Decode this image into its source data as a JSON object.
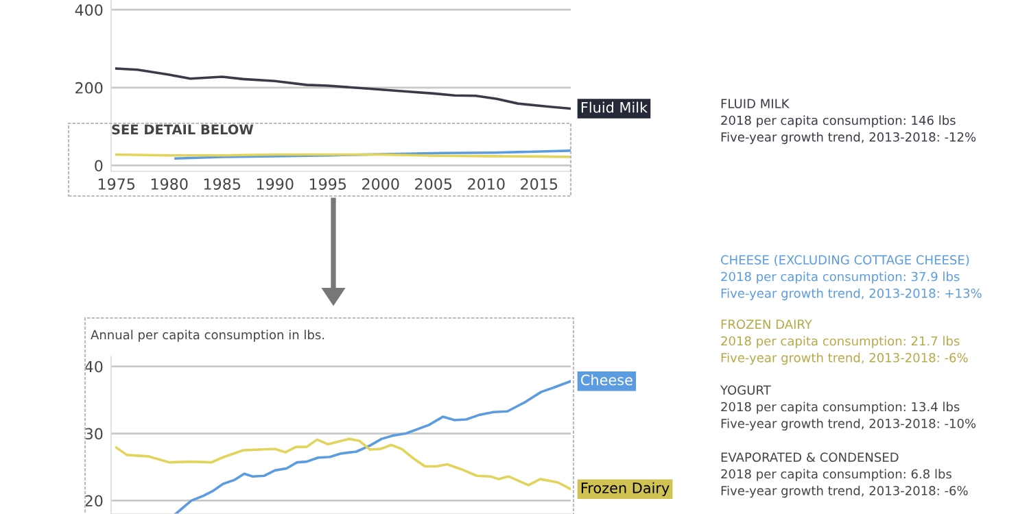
{
  "chart_data": [
    {
      "type": "line",
      "xlim": [
        1974.5,
        2018
      ],
      "xticks": [
        1975,
        1980,
        1985,
        1990,
        1995,
        2000,
        2005,
        2010,
        2015
      ],
      "ylim": [
        -15,
        425
      ],
      "yticks": [
        0,
        200,
        400
      ],
      "grid": "y",
      "annotations": [
        "SEE DETAIL BELOW",
        "FLUID MILK\n2018 per capita consumption: 146 lbs\nFive-year growth trend, 2013-2018: -12%"
      ],
      "series": [
        {
          "name": "Fluid Milk",
          "color": "#3a3b48",
          "x": [
            1975,
            1977,
            1980,
            1982,
            1985,
            1987,
            1990,
            1993,
            1995,
            1999,
            2002,
            2005,
            2007,
            2009,
            2011,
            2013,
            2016,
            2018
          ],
          "values": [
            249,
            246,
            233,
            223,
            228,
            222,
            217,
            207,
            205,
            197,
            191,
            185,
            180,
            179,
            171,
            159,
            151,
            146
          ]
        },
        {
          "color": "#5b9be0",
          "x": [
            1980.6,
            1985.1,
            1990,
            1995.2,
            2000.1,
            2005.9,
            2010.7,
            2015.2,
            2018
          ],
          "values": [
            18,
            22,
            24,
            26,
            29,
            32,
            33,
            36,
            38
          ]
        },
        {
          "color": "#e2d35a",
          "x": [
            1975,
            1980,
            1985,
            1990,
            1995,
            2000,
            2005.3,
            2010.4,
            2015.1,
            2018
          ],
          "values": [
            28,
            26,
            26,
            28,
            28,
            28,
            25,
            24,
            23,
            22
          ]
        }
      ]
    },
    {
      "type": "line",
      "xlim": [
        1974.5,
        2018
      ],
      "ylim": [
        18,
        41.5
      ],
      "yticks": [
        20,
        30,
        40
      ],
      "grid": "y",
      "tick_labels": "y",
      "ylabel": "Annual per capita consumption in lbs.",
      "annotations": [
        "CHEESE (EXCLUDING COTTAGE CHEESE)\n2018 per capita consumption: 37.9 lbs\nFive-year growth trend, 2013-2018: +13%",
        "FROZEN DAIRY\n2018 per capita consumption: 21.7 lbs\nFive-year growth trend, 2013-2018: -6%",
        "YOGURT\n2018 per capita consumption: 13.4 lbs\nFive-year growth trend, 2013-2018: -10%",
        "EVAPORATED & CONDENSED\n2018 per capita consumption: 6.8 lbs\nFive-year growth trend, 2013-2018: -6%"
      ],
      "series": [
        {
          "name": "Cheese",
          "color": "#5b9be0",
          "x": [
            1980.6,
            1982.1,
            1983.2,
            1984.1,
            1985.1,
            1986.2,
            1987.1,
            1987.9,
            1989,
            1990,
            1991.1,
            1992.1,
            1993,
            1994.1,
            1995.2,
            1996.2,
            1997.7,
            1999,
            2000.1,
            2001.2,
            2002.4,
            2004.6,
            2005.9,
            2007,
            2008.1,
            2009.4,
            2010.7,
            2012,
            2013.7,
            2015.2,
            2016.3,
            2018
          ],
          "values": [
            18.0,
            20.0,
            20.7,
            21.4,
            22.5,
            23.1,
            24.0,
            23.6,
            23.7,
            24.5,
            24.8,
            25.7,
            25.8,
            26.4,
            26.5,
            27.0,
            27.3,
            28.2,
            29.2,
            29.7,
            30.0,
            31.3,
            32.5,
            32.0,
            32.1,
            32.8,
            33.2,
            33.3,
            34.7,
            36.2,
            36.8,
            37.8
          ]
        },
        {
          "name": "Frozen Dairy",
          "color": "#e2d35a",
          "x": [
            1975,
            1976,
            1978,
            1980,
            1982,
            1984,
            1985,
            1987,
            1990,
            1991,
            1992,
            1993,
            1994,
            1995,
            1997,
            1998,
            1999,
            2000,
            2001,
            2002,
            2003.1,
            2004.2,
            2005.3,
            2006.3,
            2007.6,
            2009.1,
            2010.4,
            2011.2,
            2012.1,
            2014,
            2015.1,
            2016.8,
            2018
          ],
          "values": [
            27.9,
            26.8,
            26.6,
            25.7,
            25.8,
            25.7,
            26.4,
            27.5,
            27.7,
            27.2,
            28.0,
            28.0,
            29.1,
            28.4,
            29.2,
            28.9,
            27.6,
            27.7,
            28.3,
            27.7,
            26.3,
            25.1,
            25.1,
            25.4,
            24.7,
            23.7,
            23.6,
            23.2,
            23.6,
            22.3,
            23.2,
            22.7,
            21.7
          ]
        }
      ]
    }
  ]
}
